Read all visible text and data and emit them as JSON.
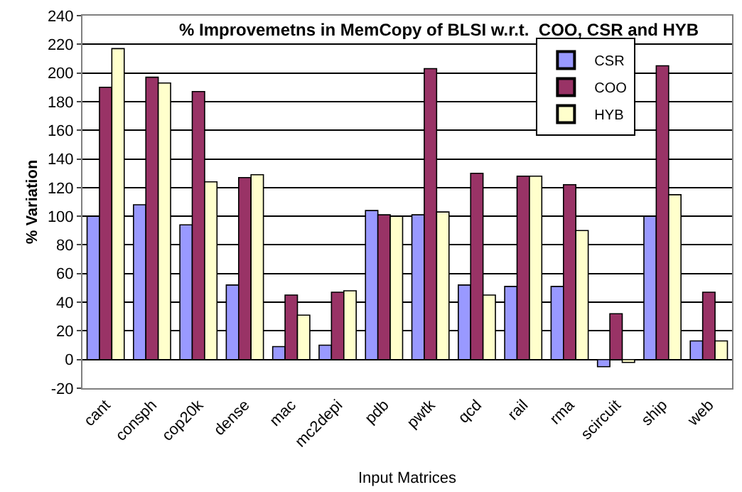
{
  "chart_data": {
    "type": "bar",
    "title": "% Improvemetns in MemCopy of BLSI w.r.t.  COO, CSR and HYB",
    "xlabel": "Input Matrices",
    "ylabel": "% Variation",
    "categories": [
      "cant",
      "consph",
      "cop20k",
      "dense",
      "mac",
      "mc2depi",
      "pdb",
      "pwtk",
      "qcd",
      "rail",
      "rma",
      "scircuit",
      "ship",
      "web"
    ],
    "series": [
      {
        "name": "CSR",
        "color": "#9999ff",
        "values": [
          100,
          108,
          94,
          52,
          9,
          10,
          104,
          101,
          52,
          51,
          51,
          -5,
          100,
          13
        ]
      },
      {
        "name": "COO",
        "color": "#993366",
        "values": [
          190,
          197,
          187,
          127,
          45,
          47,
          101,
          203,
          130,
          128,
          122,
          32,
          205,
          47
        ]
      },
      {
        "name": "HYB",
        "color": "#ffffcc",
        "values": [
          217,
          193,
          124,
          129,
          31,
          48,
          100,
          103,
          45,
          128,
          90,
          -2,
          115,
          13
        ]
      }
    ],
    "ylim": [
      -20,
      240
    ],
    "yticks": [
      -20,
      0,
      20,
      40,
      60,
      80,
      100,
      120,
      140,
      160,
      180,
      200,
      220,
      240
    ],
    "grid": "y",
    "legend": "top right"
  }
}
